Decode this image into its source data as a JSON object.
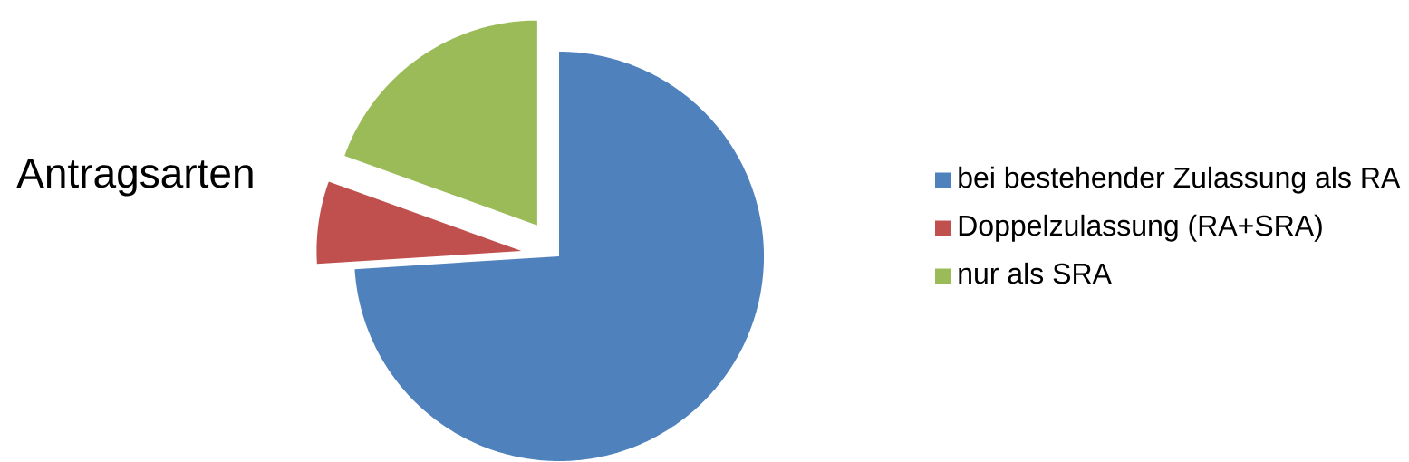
{
  "chart_data": {
    "type": "pie",
    "title": "Antragsarten",
    "categories": [
      "bei bestehender Zulassung als RA",
      "Doppelzulassung (RA+SRA)",
      "nur als SRA"
    ],
    "values": [
      74,
      6.5,
      19.5
    ],
    "colors": [
      "#4f81bd",
      "#c0504d",
      "#9bbb59"
    ],
    "legend": "right"
  }
}
